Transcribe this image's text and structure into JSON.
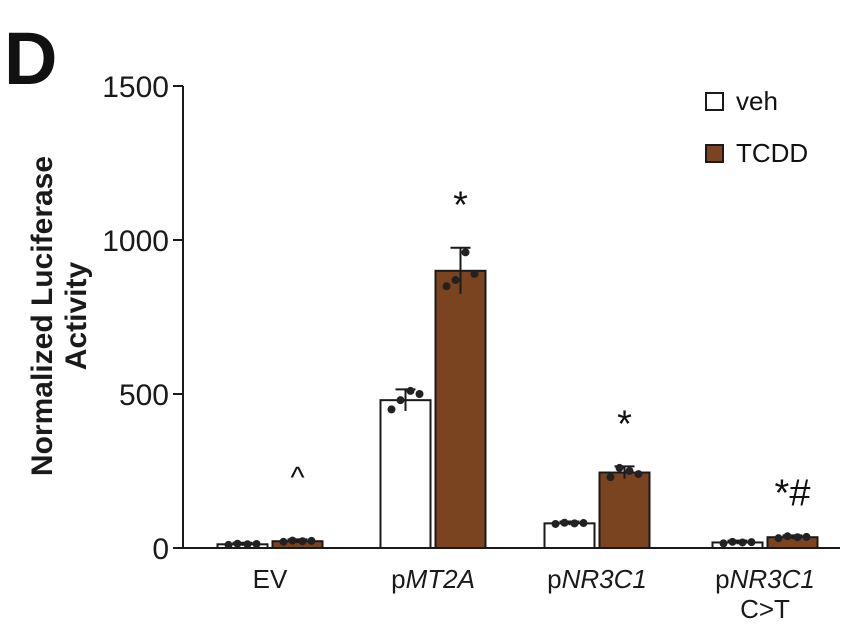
{
  "panel_label": "D",
  "colors": {
    "veh": "#ffffff",
    "TCDD": "#7a4420",
    "stroke": "#1a1a1a",
    "dot": "#222222"
  },
  "chart_data": {
    "type": "bar",
    "ylabel_line1": "Normalized Luciferase",
    "ylabel_line2": "Activity",
    "xlabel": "",
    "ylim": [
      0,
      1500
    ],
    "yticks": [
      "0",
      "500",
      "1000",
      "1500"
    ],
    "ytick_values": [
      0,
      500,
      1000,
      1500
    ],
    "grid": false,
    "legend_position": "top-right",
    "categories": [
      {
        "prefix": "p",
        "gene": "",
        "line2": "",
        "label": "EV"
      },
      {
        "prefix": "p",
        "gene": "MT2A",
        "line2": ""
      },
      {
        "prefix": "p",
        "gene": "NR3C1",
        "line2": ""
      },
      {
        "prefix": "p",
        "gene": "NR3C1",
        "line2": "C>T"
      }
    ],
    "series": [
      {
        "name": "veh",
        "values": [
          12,
          480,
          80,
          18
        ],
        "errors": [
          5,
          35,
          6,
          6
        ],
        "points": [
          [
            10,
            14,
            12,
            13
          ],
          [
            450,
            480,
            510,
            500
          ],
          [
            78,
            82,
            80,
            81
          ],
          [
            15,
            20,
            18,
            19
          ]
        ]
      },
      {
        "name": "TCDD",
        "values": [
          22,
          900,
          245,
          35
        ],
        "errors": [
          6,
          75,
          20,
          6
        ],
        "points": [
          [
            20,
            24,
            22,
            23
          ],
          [
            850,
            870,
            960,
            890
          ],
          [
            230,
            260,
            250,
            240
          ],
          [
            32,
            38,
            35,
            36
          ]
        ]
      }
    ],
    "annotations": [
      "^",
      "*",
      "*",
      "*#"
    ]
  }
}
